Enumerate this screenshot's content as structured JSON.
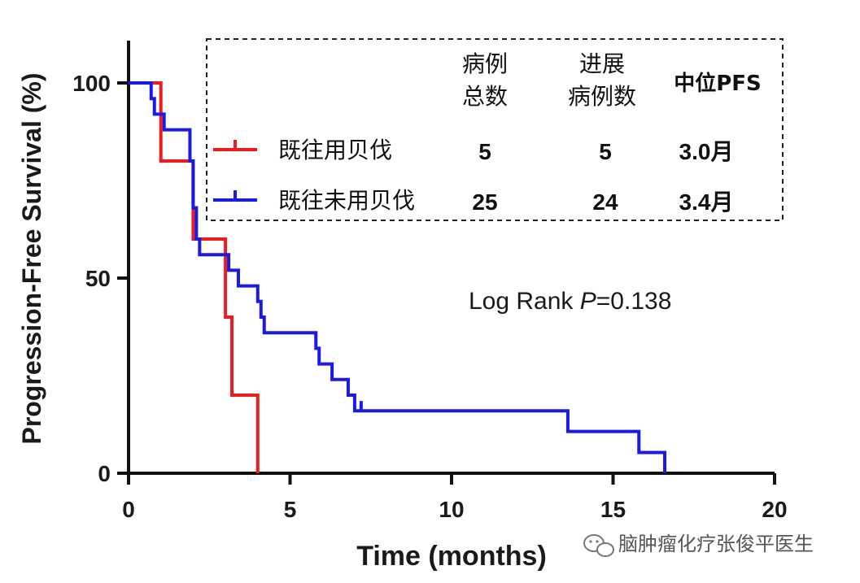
{
  "chart_data": {
    "type": "line",
    "subtype": "kaplan-meier step",
    "xlabel": "Time (months)",
    "ylabel": "Progression-Free Survival (%)",
    "xlim": [
      0,
      20
    ],
    "ylim": [
      0,
      100
    ],
    "xticks": [
      "0",
      "5",
      "10",
      "15",
      "20"
    ],
    "yticks": [
      "0",
      "50",
      "100"
    ],
    "legend_placement": "top-right",
    "legend_headers": [
      "病例\n总数",
      "进展\n病例数",
      "中位PFS"
    ],
    "series": [
      {
        "name": "既往用贝伐",
        "color": "#ee1c1c",
        "total": "5",
        "events": "5",
        "median_pfs": "3.0月",
        "steps": [
          [
            0,
            100
          ],
          [
            1.0,
            80
          ],
          [
            2.0,
            60
          ],
          [
            3.0,
            40
          ],
          [
            3.2,
            20
          ],
          [
            4.0,
            0
          ]
        ],
        "censor": []
      },
      {
        "name": "既往未用贝伐",
        "color": "#1a1ae6",
        "total": "25",
        "events": "24",
        "median_pfs": "3.4月",
        "steps": [
          [
            0,
            100
          ],
          [
            0.7,
            96
          ],
          [
            0.8,
            92
          ],
          [
            1.1,
            88
          ],
          [
            1.9,
            80
          ],
          [
            2.0,
            68
          ],
          [
            2.1,
            60
          ],
          [
            2.2,
            56
          ],
          [
            3.1,
            52
          ],
          [
            3.4,
            48
          ],
          [
            4.0,
            44
          ],
          [
            4.1,
            40
          ],
          [
            4.2,
            36
          ],
          [
            5.8,
            32
          ],
          [
            5.9,
            28
          ],
          [
            6.3,
            24
          ],
          [
            6.8,
            20
          ],
          [
            7.0,
            16
          ],
          [
            13.6,
            10.7
          ],
          [
            15.8,
            5.3
          ],
          [
            16.6,
            0
          ]
        ],
        "censor": [
          [
            7.2,
            16
          ]
        ]
      }
    ],
    "annotation": {
      "prefix": "Log Rank  ",
      "p_symbol": "P",
      "value": "=0.138"
    }
  },
  "watermark": "脑肿瘤化疗张俊平医生"
}
